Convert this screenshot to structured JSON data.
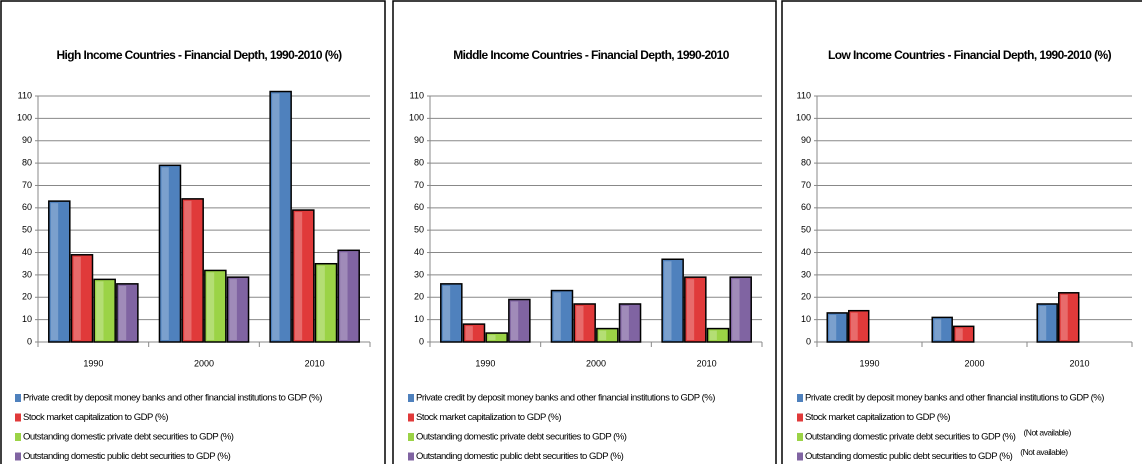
{
  "chart_data": [
    {
      "type": "bar",
      "title": "High Income Countries - Financial Depth, 1990-2010 (%)",
      "categories": [
        "1990",
        "2000",
        "2010"
      ],
      "series": [
        {
          "name": "Private credit by deposit money banks and other financial institutions to GDP (%)",
          "color": "#4f81bd",
          "values": [
            63,
            79,
            112
          ]
        },
        {
          "name": "Stock market capitalization to GDP (%)",
          "color": "#e03a3a",
          "values": [
            39,
            64,
            59
          ]
        },
        {
          "name": "Outstanding domestic private debt securities to GDP (%)",
          "color": "#9bd346",
          "values": [
            28,
            32,
            35
          ]
        },
        {
          "name": "Outstanding domestic public debt securities to GDP (%)",
          "color": "#8064a2",
          "values": [
            26,
            29,
            41
          ]
        }
      ],
      "ylim": [
        0,
        110
      ],
      "yticks": [
        0,
        10,
        20,
        30,
        40,
        50,
        60,
        70,
        80,
        90,
        100,
        110
      ],
      "grid": true
    },
    {
      "type": "bar",
      "title": "Middle Income Countries - Financial Depth, 1990-2010",
      "categories": [
        "1990",
        "2000",
        "2010"
      ],
      "series": [
        {
          "name": "Private credit by deposit money banks and other financial institutions to GDP (%)",
          "color": "#4f81bd",
          "values": [
            26,
            23,
            37
          ]
        },
        {
          "name": "Stock market capitalization to GDP (%)",
          "color": "#e03a3a",
          "values": [
            8,
            17,
            29
          ]
        },
        {
          "name": "Outstanding domestic private debt securities to GDP (%)",
          "color": "#9bd346",
          "values": [
            4,
            6,
            6
          ]
        },
        {
          "name": "Outstanding domestic public debt securities to GDP (%)",
          "color": "#8064a2",
          "values": [
            19,
            17,
            29
          ]
        }
      ],
      "ylim": [
        0,
        110
      ],
      "yticks": [
        0,
        10,
        20,
        30,
        40,
        50,
        60,
        70,
        80,
        90,
        100,
        110
      ],
      "grid": true
    },
    {
      "type": "bar",
      "title": "Low Income Countries - Financial Depth, 1990-2010 (%)",
      "categories": [
        "1990",
        "2000",
        "2010"
      ],
      "series": [
        {
          "name": "Private credit by deposit money banks and other financial institutions to GDP (%)",
          "color": "#4f81bd",
          "values": [
            13,
            11,
            17
          ]
        },
        {
          "name": "Stock market capitalization to GDP (%)",
          "color": "#e03a3a",
          "values": [
            14,
            7,
            22
          ]
        },
        {
          "name": "Outstanding domestic private debt securities to GDP (%)",
          "color": "#9bd346",
          "values": [
            null,
            null,
            null
          ],
          "note": "(Not available)"
        },
        {
          "name": "Outstanding domestic public debt securities to GDP (%)",
          "color": "#8064a2",
          "values": [
            null,
            null,
            null
          ],
          "note": "(Not available)"
        }
      ],
      "ylim": [
        0,
        110
      ],
      "yticks": [
        0,
        10,
        20,
        30,
        40,
        50,
        60,
        70,
        80,
        90,
        100,
        110
      ],
      "grid": true
    }
  ]
}
